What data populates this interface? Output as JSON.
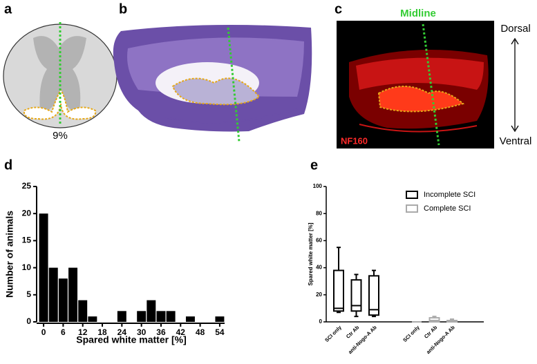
{
  "figure": {
    "panels": [
      "a",
      "b",
      "c",
      "d",
      "e"
    ],
    "a": {
      "percent_label": "9%"
    },
    "c": {
      "midline": "Midline",
      "dorsal": "Dorsal",
      "ventral": "Ventral",
      "stain": "NF160"
    }
  },
  "chart_data": [
    {
      "type": "histogram",
      "xlabel": "Spared white matter [%]",
      "ylabel": "Number of animals",
      "color": "#000000",
      "bins": [
        -1.5,
        1.5,
        4.5,
        7.5,
        10.5,
        13.5,
        16.5,
        19.5,
        22.5,
        25.5,
        28.5,
        31.5,
        34.5,
        37.5,
        40.5,
        43.5,
        46.5,
        49.5,
        52.5,
        55.5
      ],
      "values": [
        20,
        10,
        8,
        10,
        4,
        1,
        0,
        0,
        2,
        0,
        2,
        4,
        2,
        2,
        0,
        1,
        0,
        0,
        1
      ],
      "xlim": [
        -1.5,
        55.5
      ],
      "xticks": [
        0,
        6,
        12,
        18,
        24,
        30,
        36,
        42,
        48,
        54
      ],
      "ylim": [
        0,
        25
      ],
      "yticks": [
        0,
        5,
        10,
        15,
        20,
        25
      ]
    },
    {
      "type": "box",
      "ylabel": "Spared white matter [%]",
      "legend": "top-right",
      "ylim": [
        0,
        100
      ],
      "yticks": [
        0,
        20,
        40,
        60,
        80,
        100
      ],
      "series": [
        {
          "name": "Incomplete SCI",
          "color": "#000000",
          "categories": [
            "SCI only",
            "Ctr Ab",
            "anti-Nogo-A Ab"
          ],
          "min": [
            7,
            4,
            4
          ],
          "q1": [
            8,
            8,
            5
          ],
          "median": [
            10,
            12,
            9
          ],
          "q3": [
            38,
            31,
            34
          ],
          "max": [
            55,
            35,
            38
          ]
        },
        {
          "name": "Complete SCI",
          "color": "#aaaaaa",
          "categories": [
            "SCI only",
            "Ctr Ab",
            "anti-Nogo-A Ab"
          ],
          "min": [
            0,
            0,
            0
          ],
          "q1": [
            0,
            0,
            0
          ],
          "median": [
            0,
            1,
            0
          ],
          "q3": [
            0,
            3,
            1
          ],
          "max": [
            0,
            4,
            2
          ]
        }
      ]
    }
  ]
}
